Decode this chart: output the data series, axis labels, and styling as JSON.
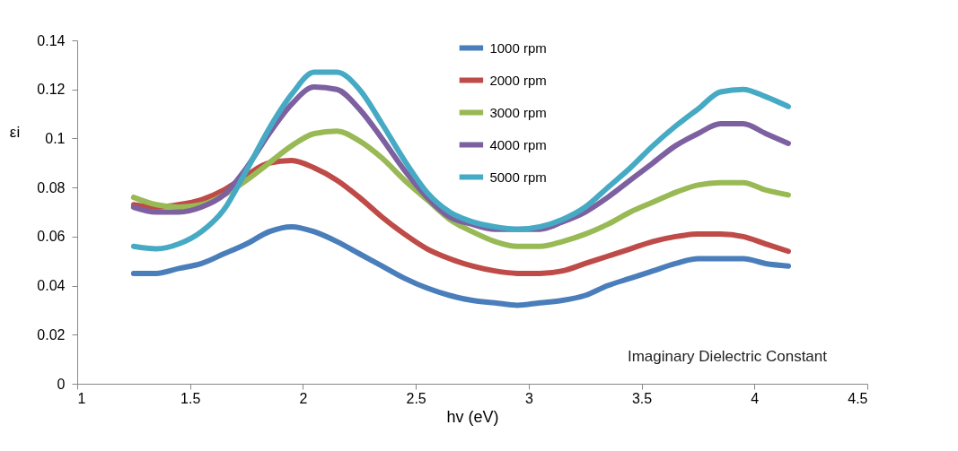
{
  "chart_data": {
    "type": "line",
    "xlabel": "hv (eV)",
    "ylabel": "εi",
    "annotations": [
      "Imaginary Dielectric Constant"
    ],
    "x": [
      1.25,
      1.35,
      1.45,
      1.55,
      1.65,
      1.75,
      1.85,
      1.95,
      2.05,
      2.15,
      2.25,
      2.35,
      2.45,
      2.55,
      2.65,
      2.75,
      2.85,
      2.95,
      3.05,
      3.15,
      3.25,
      3.35,
      3.45,
      3.55,
      3.65,
      3.75,
      3.85,
      3.95,
      4.05,
      4.15
    ],
    "series": [
      {
        "name": "1000 rpm",
        "color": "#4a7ebb",
        "values": [
          0.045,
          0.045,
          0.047,
          0.049,
          0.053,
          0.057,
          0.062,
          0.064,
          0.062,
          0.058,
          0.053,
          0.048,
          0.043,
          0.039,
          0.036,
          0.034,
          0.033,
          0.032,
          0.033,
          0.034,
          0.036,
          0.04,
          0.043,
          0.046,
          0.049,
          0.051,
          0.051,
          0.051,
          0.049,
          0.048
        ]
      },
      {
        "name": "2000 rpm",
        "color": "#be4b48",
        "values": [
          0.073,
          0.072,
          0.073,
          0.075,
          0.079,
          0.085,
          0.09,
          0.091,
          0.088,
          0.083,
          0.076,
          0.068,
          0.061,
          0.055,
          0.051,
          0.048,
          0.046,
          0.045,
          0.045,
          0.046,
          0.049,
          0.052,
          0.055,
          0.058,
          0.06,
          0.061,
          0.061,
          0.06,
          0.057,
          0.054
        ]
      },
      {
        "name": "3000 rpm",
        "color": "#98b954",
        "values": [
          0.076,
          0.073,
          0.072,
          0.073,
          0.077,
          0.083,
          0.09,
          0.097,
          0.102,
          0.103,
          0.099,
          0.092,
          0.083,
          0.075,
          0.067,
          0.062,
          0.058,
          0.056,
          0.056,
          0.058,
          0.061,
          0.065,
          0.07,
          0.074,
          0.078,
          0.081,
          0.082,
          0.082,
          0.079,
          0.077
        ]
      },
      {
        "name": "4000 rpm",
        "color": "#7d60a0",
        "values": [
          0.072,
          0.07,
          0.07,
          0.072,
          0.077,
          0.088,
          0.102,
          0.114,
          0.121,
          0.12,
          0.112,
          0.1,
          0.087,
          0.076,
          0.068,
          0.065,
          0.063,
          0.063,
          0.063,
          0.066,
          0.07,
          0.076,
          0.083,
          0.09,
          0.097,
          0.102,
          0.106,
          0.106,
          0.102,
          0.098
        ]
      },
      {
        "name": "5000 rpm",
        "color": "#46aac5",
        "values": [
          0.056,
          0.055,
          0.057,
          0.062,
          0.071,
          0.087,
          0.104,
          0.118,
          0.127,
          0.127,
          0.12,
          0.106,
          0.091,
          0.078,
          0.07,
          0.066,
          0.064,
          0.063,
          0.064,
          0.067,
          0.072,
          0.08,
          0.088,
          0.097,
          0.105,
          0.112,
          0.119,
          0.12,
          0.117,
          0.113
        ]
      }
    ],
    "xlim": [
      1,
      4.5
    ],
    "xticks": [
      1,
      1.5,
      2,
      2.5,
      3,
      3.5,
      4,
      4.5
    ],
    "ylim": [
      0,
      0.14
    ],
    "yticks": [
      0,
      0.02,
      0.04,
      0.06,
      0.08,
      0.1,
      0.12,
      0.14
    ],
    "grid": false,
    "legend": "top",
    "marker": "none",
    "line_style": "solid"
  }
}
